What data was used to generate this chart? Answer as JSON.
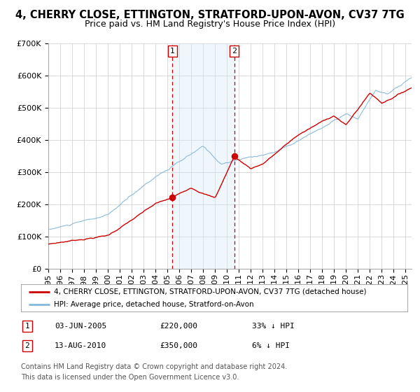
{
  "title": "4, CHERRY CLOSE, ETTINGTON, STRATFORD-UPON-AVON, CV37 7TG",
  "subtitle": "Price paid vs. HM Land Registry's House Price Index (HPI)",
  "ylim": [
    0,
    700000
  ],
  "xlim_start": 1995.0,
  "xlim_end": 2025.5,
  "yticks": [
    0,
    100000,
    200000,
    300000,
    400000,
    500000,
    600000,
    700000
  ],
  "ytick_labels": [
    "£0",
    "£100K",
    "£200K",
    "£300K",
    "£400K",
    "£500K",
    "£600K",
    "£700K"
  ],
  "xticks": [
    1995,
    1996,
    1997,
    1998,
    1999,
    2000,
    2001,
    2002,
    2003,
    2004,
    2005,
    2006,
    2007,
    2008,
    2009,
    2010,
    2011,
    2012,
    2013,
    2014,
    2015,
    2016,
    2017,
    2018,
    2019,
    2020,
    2021,
    2022,
    2023,
    2024,
    2025
  ],
  "legend_line1": "4, CHERRY CLOSE, ETTINGTON, STRATFORD-UPON-AVON, CV37 7TG (detached house)",
  "legend_line2": "HPI: Average price, detached house, Stratford-on-Avon",
  "marker1_date": "03-JUN-2005",
  "marker1_price": 220000,
  "marker1_hpi": "33% ↓ HPI",
  "marker1_x": 2005.42,
  "marker2_date": "13-AUG-2010",
  "marker2_price": 350000,
  "marker2_hpi": "6% ↓ HPI",
  "marker2_x": 2010.62,
  "shade_color": "#d6eaf8",
  "line1_color": "#cc0000",
  "line2_color": "#85b8d9",
  "grid_color": "#cccccc",
  "background_color": "#ffffff",
  "footnote_line1": "Contains HM Land Registry data © Crown copyright and database right 2024.",
  "footnote_line2": "This data is licensed under the Open Government Licence v3.0.",
  "title_fontsize": 10.5,
  "subtitle_fontsize": 9,
  "tick_fontsize": 8,
  "footnote_fontsize": 7
}
